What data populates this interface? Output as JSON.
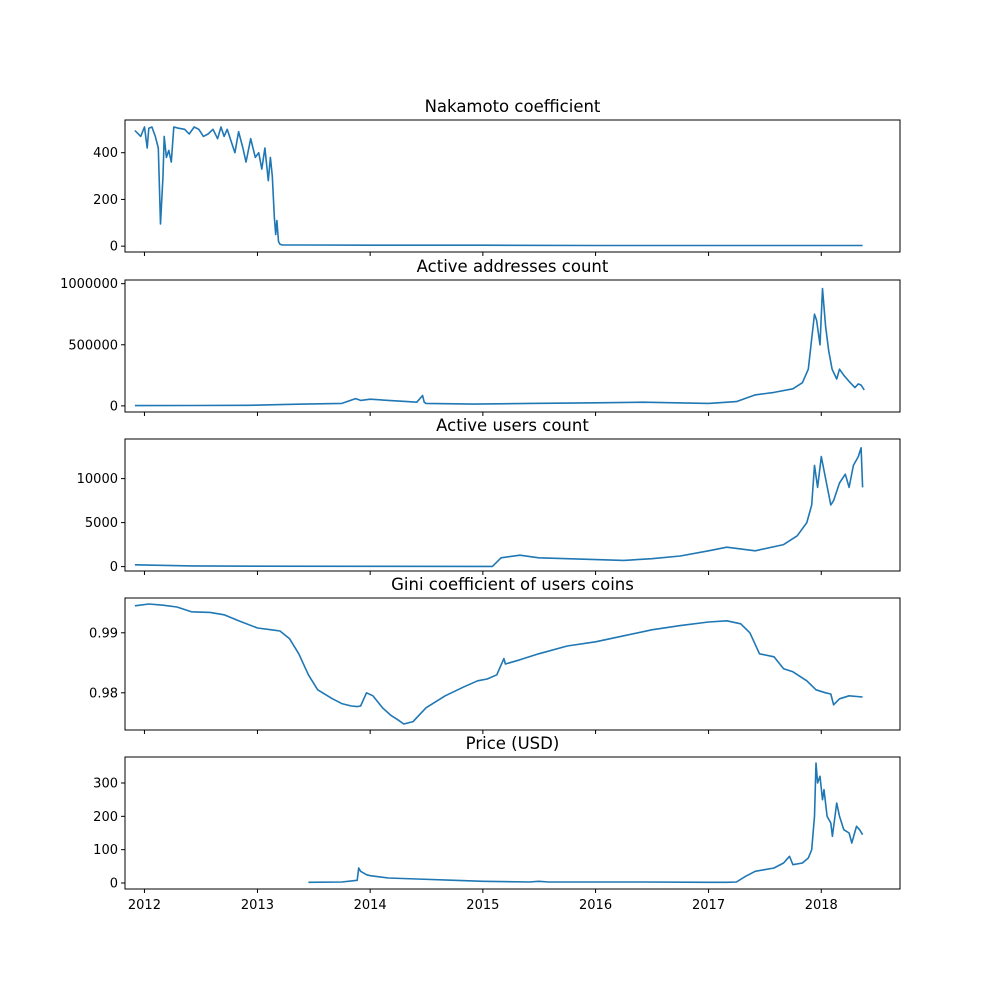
{
  "figure": {
    "x_axis": {
      "type": "date",
      "range": [
        "2011-10-30",
        "2018-09-13"
      ],
      "tick_labels": [
        "2012",
        "2013",
        "2014",
        "2015",
        "2016",
        "2017",
        "2018"
      ]
    },
    "line_color": "#1f77b4",
    "grid": false,
    "legend": "none"
  },
  "chart_data": [
    {
      "type": "line",
      "title": "Nakamoto coefficient",
      "xlabel": "",
      "ylabel": "",
      "ylim": [
        -25,
        540
      ],
      "yticks": [
        0,
        200,
        400
      ],
      "ytick_labels": [
        "0",
        "200",
        "400"
      ],
      "series": [
        {
          "x": [
            "2011-12-01",
            "2011-12-20",
            "2012-01-01",
            "2012-01-10",
            "2012-01-15",
            "2012-01-25",
            "2012-02-05",
            "2012-02-15",
            "2012-02-22",
            "2012-03-01",
            "2012-03-05",
            "2012-03-12",
            "2012-03-20",
            "2012-03-28",
            "2012-04-05",
            "2012-04-20",
            "2012-05-10",
            "2012-05-25",
            "2012-06-10",
            "2012-06-25",
            "2012-07-10",
            "2012-07-25",
            "2012-08-10",
            "2012-08-25",
            "2012-09-05",
            "2012-09-15",
            "2012-09-25",
            "2012-10-10",
            "2012-10-20",
            "2012-11-01",
            "2012-11-15",
            "2012-11-25",
            "2012-12-10",
            "2012-12-25",
            "2013-01-05",
            "2013-01-15",
            "2013-01-25",
            "2013-02-05",
            "2013-02-12",
            "2013-02-18",
            "2013-02-25",
            "2013-03-01",
            "2013-03-05",
            "2013-03-10",
            "2013-03-15",
            "2013-03-20",
            "2013-03-25",
            "2013-04-01",
            "2013-04-10",
            "2013-06-01",
            "2014-01-01",
            "2015-01-01",
            "2016-01-01",
            "2017-01-01",
            "2018-01-01",
            "2018-05-15"
          ],
          "values": [
            495,
            470,
            510,
            420,
            505,
            510,
            470,
            420,
            95,
            300,
            470,
            380,
            410,
            360,
            510,
            505,
            500,
            480,
            510,
            500,
            470,
            480,
            500,
            460,
            510,
            470,
            500,
            440,
            400,
            490,
            420,
            360,
            460,
            380,
            400,
            330,
            420,
            280,
            380,
            300,
            120,
            50,
            110,
            20,
            8,
            6,
            5,
            5,
            5,
            5,
            4,
            4,
            3,
            3,
            3,
            3
          ]
        }
      ]
    },
    {
      "type": "line",
      "title": "Active addresses count",
      "xlabel": "",
      "ylabel": "",
      "ylim": [
        -50000,
        1030000
      ],
      "yticks": [
        0,
        500000,
        1000000
      ],
      "ytick_labels": [
        "0",
        "500000",
        "1000000"
      ],
      "series": [
        {
          "x": [
            "2011-12-01",
            "2012-06-01",
            "2012-12-01",
            "2013-03-01",
            "2013-06-01",
            "2013-10-01",
            "2013-11-15",
            "2013-12-01",
            "2014-01-01",
            "2014-03-01",
            "2014-05-01",
            "2014-06-01",
            "2014-06-20",
            "2014-06-25",
            "2014-07-01",
            "2014-12-01",
            "2015-06-01",
            "2016-01-01",
            "2016-06-01",
            "2017-01-01",
            "2017-04-01",
            "2017-06-01",
            "2017-08-01",
            "2017-10-01",
            "2017-11-01",
            "2017-11-20",
            "2017-12-01",
            "2017-12-10",
            "2017-12-17",
            "2017-12-28",
            "2018-01-05",
            "2018-01-15",
            "2018-01-25",
            "2018-02-05",
            "2018-02-20",
            "2018-03-01",
            "2018-03-15",
            "2018-04-01",
            "2018-04-20",
            "2018-05-01",
            "2018-05-10",
            "2018-05-20"
          ],
          "values": [
            2000,
            3000,
            5000,
            10000,
            15000,
            20000,
            60000,
            45000,
            55000,
            45000,
            35000,
            30000,
            85000,
            30000,
            20000,
            15000,
            20000,
            25000,
            30000,
            20000,
            35000,
            90000,
            110000,
            140000,
            190000,
            300000,
            550000,
            750000,
            700000,
            500000,
            960000,
            650000,
            450000,
            300000,
            220000,
            300000,
            250000,
            200000,
            150000,
            180000,
            170000,
            130000
          ]
        }
      ]
    },
    {
      "type": "line",
      "title": "Active users count",
      "xlabel": "",
      "ylabel": "",
      "ylim": [
        -500,
        14500
      ],
      "yticks": [
        0,
        5000,
        10000
      ],
      "ytick_labels": [
        "0",
        "5000",
        "10000"
      ],
      "series": [
        {
          "x": [
            "2011-12-01",
            "2012-06-01",
            "2013-01-01",
            "2014-01-01",
            "2015-01-01",
            "2015-02-01",
            "2015-03-01",
            "2015-05-01",
            "2015-07-01",
            "2015-10-01",
            "2016-01-01",
            "2016-04-01",
            "2016-07-01",
            "2016-10-01",
            "2017-01-01",
            "2017-03-01",
            "2017-06-01",
            "2017-09-01",
            "2017-10-15",
            "2017-11-15",
            "2017-12-01",
            "2017-12-10",
            "2017-12-20",
            "2018-01-01",
            "2018-01-15",
            "2018-02-01",
            "2018-02-10",
            "2018-03-01",
            "2018-03-20",
            "2018-04-01",
            "2018-04-15",
            "2018-05-01",
            "2018-05-10",
            "2018-05-15"
          ],
          "values": [
            200,
            80,
            50,
            30,
            20,
            20,
            1000,
            1300,
            1000,
            900,
            800,
            700,
            900,
            1200,
            1800,
            2200,
            1800,
            2500,
            3500,
            5000,
            7000,
            11500,
            9000,
            12500,
            10000,
            7000,
            7500,
            9500,
            10500,
            9000,
            11500,
            12500,
            13500,
            9000
          ]
        }
      ]
    },
    {
      "type": "line",
      "title": "Gini coefficient of users coins",
      "xlabel": "",
      "ylabel": "",
      "ylim": [
        0.9738,
        0.9958
      ],
      "yticks": [
        0.98,
        0.99
      ],
      "ytick_labels": [
        "0.98",
        "0.99"
      ],
      "series": [
        {
          "x": [
            "2011-12-01",
            "2012-01-15",
            "2012-03-01",
            "2012-04-15",
            "2012-06-01",
            "2012-08-01",
            "2012-09-15",
            "2012-11-01",
            "2013-01-01",
            "2013-02-15",
            "2013-03-15",
            "2013-04-15",
            "2013-05-15",
            "2013-06-15",
            "2013-07-15",
            "2013-09-01",
            "2013-10-01",
            "2013-11-01",
            "2013-11-20",
            "2013-12-01",
            "2013-12-20",
            "2014-01-10",
            "2014-02-10",
            "2014-03-10",
            "2014-04-01",
            "2014-04-20",
            "2014-05-20",
            "2014-07-01",
            "2014-09-01",
            "2014-11-01",
            "2014-12-15",
            "2015-01-15",
            "2015-02-15",
            "2015-03-10",
            "2015-03-15",
            "2015-05-01",
            "2015-07-01",
            "2015-10-01",
            "2016-01-01",
            "2016-04-01",
            "2016-07-01",
            "2016-10-01",
            "2017-01-01",
            "2017-03-01",
            "2017-04-15",
            "2017-05-15",
            "2017-06-15",
            "2017-08-01",
            "2017-09-01",
            "2017-10-01",
            "2017-11-15",
            "2017-12-15",
            "2018-01-15",
            "2018-02-01",
            "2018-02-10",
            "2018-03-01",
            "2018-04-01",
            "2018-05-15"
          ],
          "values": [
            0.9945,
            0.9948,
            0.9946,
            0.9943,
            0.9935,
            0.9934,
            0.993,
            0.992,
            0.9908,
            0.9905,
            0.9903,
            0.989,
            0.9865,
            0.983,
            0.9805,
            0.979,
            0.9782,
            0.9778,
            0.9777,
            0.9778,
            0.98,
            0.9795,
            0.9775,
            0.9762,
            0.9755,
            0.9748,
            0.9752,
            0.9775,
            0.9795,
            0.981,
            0.982,
            0.9823,
            0.983,
            0.9857,
            0.9848,
            0.9855,
            0.9865,
            0.9878,
            0.9885,
            0.9895,
            0.9905,
            0.9912,
            0.9918,
            0.992,
            0.9915,
            0.99,
            0.9865,
            0.986,
            0.984,
            0.9835,
            0.982,
            0.9805,
            0.98,
            0.9798,
            0.978,
            0.979,
            0.9795,
            0.9793
          ]
        }
      ]
    },
    {
      "type": "line",
      "title": "Price (USD)",
      "xlabel": "",
      "ylabel": "",
      "ylim": [
        -18,
        378
      ],
      "yticks": [
        0,
        100,
        200,
        300
      ],
      "ytick_labels": [
        "0",
        "100",
        "200",
        "300"
      ],
      "series": [
        {
          "x": [
            "2013-06-15",
            "2013-10-01",
            "2013-11-20",
            "2013-11-25",
            "2013-12-01",
            "2013-12-20",
            "2014-01-01",
            "2014-03-01",
            "2014-06-01",
            "2014-10-01",
            "2015-01-01",
            "2015-06-01",
            "2015-07-01",
            "2015-08-01",
            "2016-01-01",
            "2016-06-01",
            "2017-01-01",
            "2017-03-01",
            "2017-04-01",
            "2017-05-01",
            "2017-06-01",
            "2017-07-01",
            "2017-08-01",
            "2017-09-01",
            "2017-09-20",
            "2017-10-01",
            "2017-11-01",
            "2017-11-20",
            "2017-12-01",
            "2017-12-10",
            "2017-12-15",
            "2017-12-20",
            "2017-12-28",
            "2018-01-05",
            "2018-01-10",
            "2018-01-20",
            "2018-02-01",
            "2018-02-06",
            "2018-02-20",
            "2018-03-01",
            "2018-03-15",
            "2018-04-01",
            "2018-04-10",
            "2018-04-25",
            "2018-05-05",
            "2018-05-15"
          ],
          "values": [
            2,
            3,
            8,
            45,
            35,
            25,
            22,
            15,
            12,
            8,
            5,
            3,
            5,
            3,
            3,
            3,
            2,
            2,
            3,
            20,
            35,
            40,
            45,
            60,
            80,
            55,
            60,
            75,
            100,
            200,
            360,
            300,
            320,
            250,
            280,
            200,
            180,
            140,
            240,
            200,
            160,
            150,
            120,
            170,
            160,
            145
          ]
        }
      ]
    }
  ]
}
